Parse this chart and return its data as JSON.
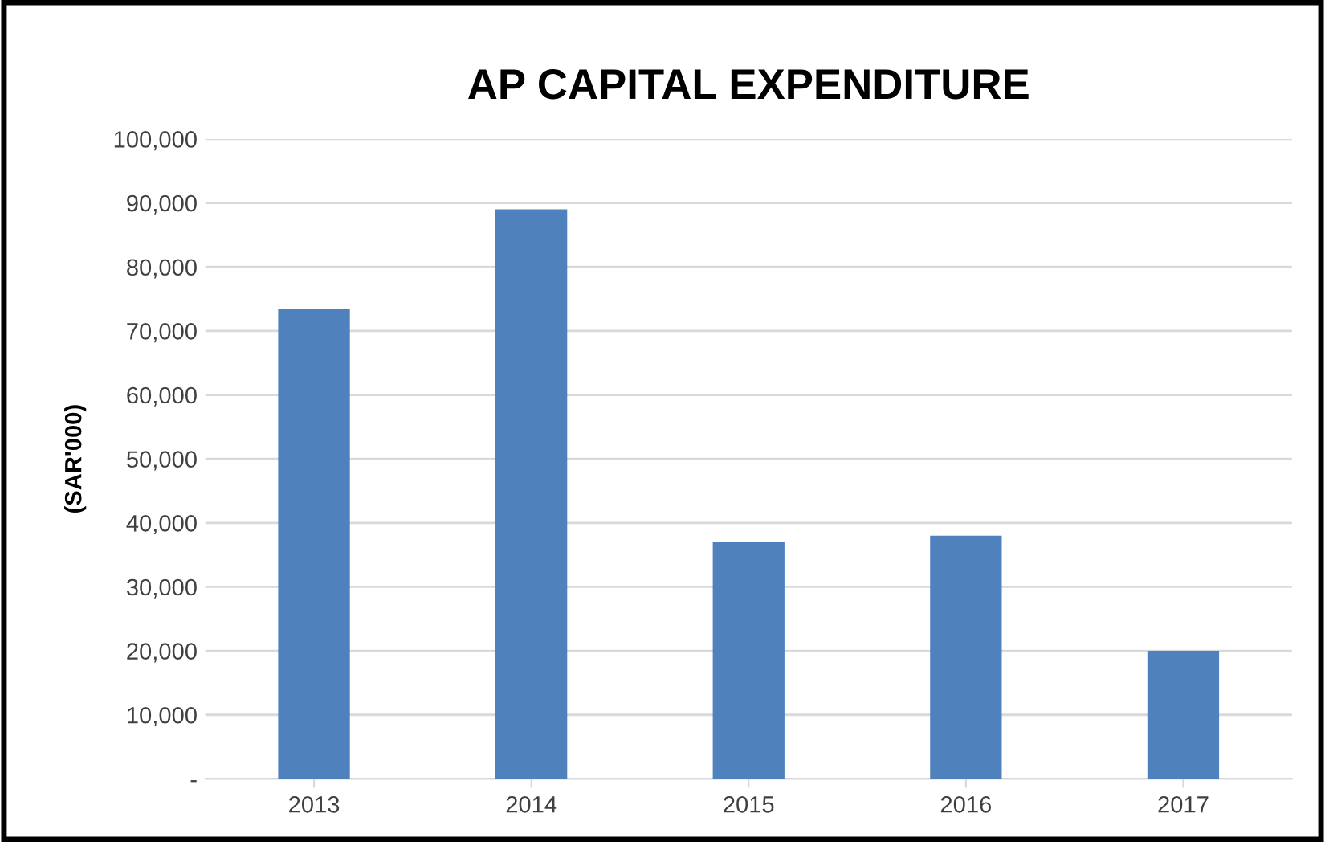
{
  "chart_data": {
    "type": "bar",
    "title": "AP CAPITAL EXPENDITURE",
    "ylabel": "(SAR'000)",
    "categories": [
      "2013",
      "2014",
      "2015",
      "2016",
      "2017"
    ],
    "values": [
      73500,
      89000,
      37000,
      38000,
      20000
    ],
    "color": "#4f81bd",
    "ylim": [
      0,
      100000
    ],
    "yticks": [
      {
        "value": 0,
        "label": "-"
      },
      {
        "value": 10000,
        "label": "10,000"
      },
      {
        "value": 20000,
        "label": "20,000"
      },
      {
        "value": 30000,
        "label": "30,000"
      },
      {
        "value": 40000,
        "label": "40,000"
      },
      {
        "value": 50000,
        "label": "50,000"
      },
      {
        "value": 60000,
        "label": "60,000"
      },
      {
        "value": 70000,
        "label": "70,000"
      },
      {
        "value": 80000,
        "label": "80,000"
      },
      {
        "value": 90000,
        "label": "90,000"
      },
      {
        "value": 100000,
        "label": "100,000"
      }
    ],
    "grid": "y"
  }
}
